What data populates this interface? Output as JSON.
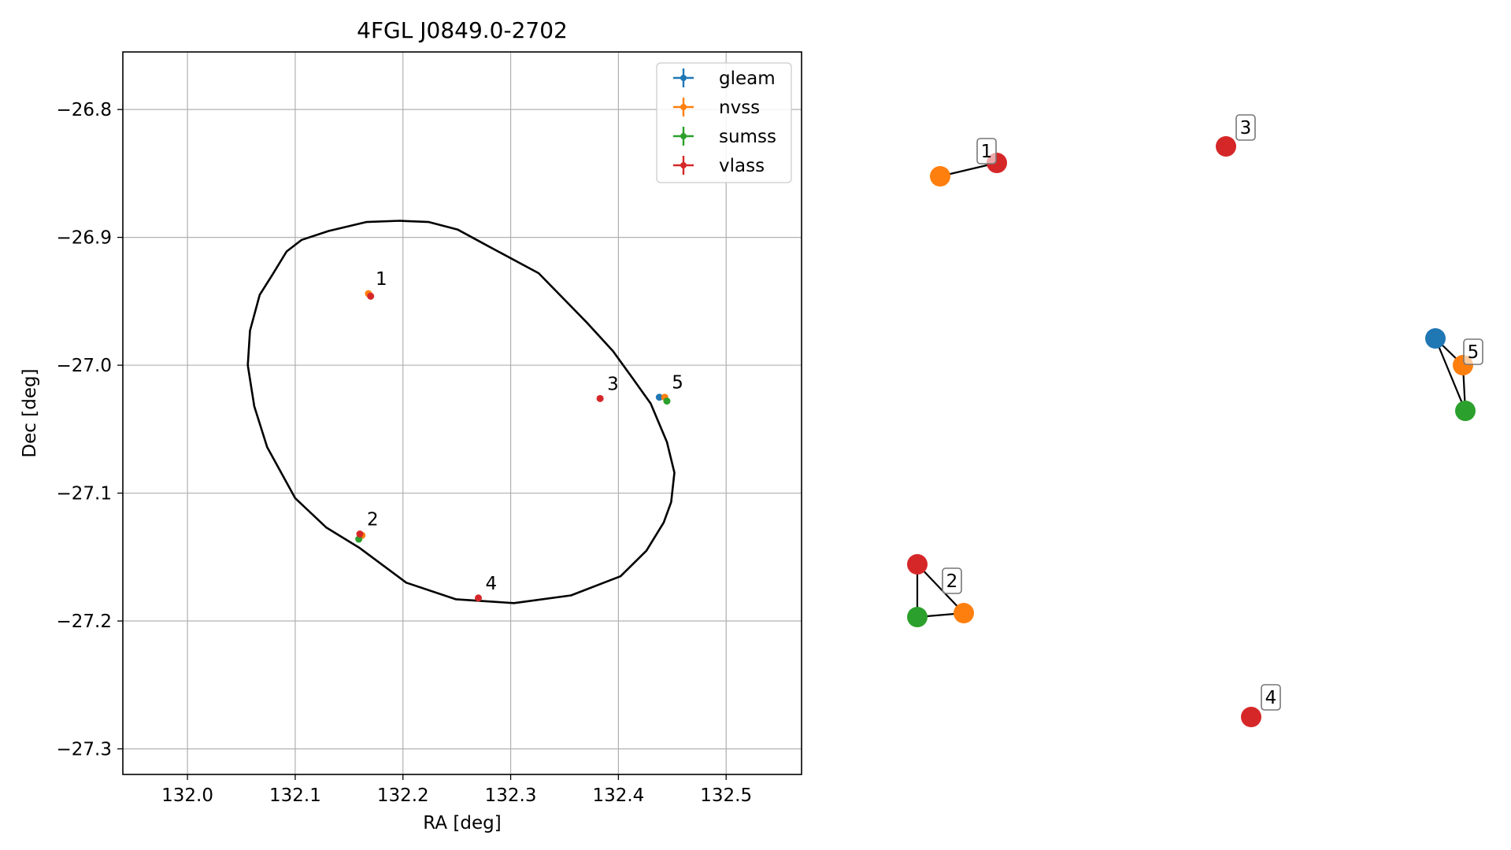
{
  "chart_data": [
    {
      "type": "scatter",
      "title": "4FGL J0849.0-2702",
      "xlabel": "RA [deg]",
      "ylabel": "Dec [deg]",
      "xlim": [
        131.94,
        132.57
      ],
      "ylim": [
        -27.32,
        -26.755
      ],
      "xticks": [
        132.0,
        132.1,
        132.2,
        132.3,
        132.4,
        132.5
      ],
      "xtick_labels": [
        "132.0",
        "132.1",
        "132.2",
        "132.3",
        "132.4",
        "132.5"
      ],
      "yticks": [
        -26.8,
        -26.9,
        -27.0,
        -27.1,
        -27.2,
        -27.3
      ],
      "ytick_labels": [
        "−26.8",
        "−26.9",
        "−27.0",
        "−27.1",
        "−27.2",
        "−27.3"
      ],
      "grid": true,
      "legend_position": "top-right",
      "series": [
        {
          "name": "gleam",
          "color": "#1f77b4",
          "points": [
            {
              "x": 132.438,
              "y": -27.025
            }
          ]
        },
        {
          "name": "nvss",
          "color": "#ff7f0e",
          "points": [
            {
              "x": 132.168,
              "y": -26.944
            },
            {
              "x": 132.162,
              "y": -27.133
            },
            {
              "x": 132.443,
              "y": -27.025
            }
          ]
        },
        {
          "name": "sumss",
          "color": "#2ca02c",
          "points": [
            {
              "x": 132.159,
              "y": -27.136
            },
            {
              "x": 132.445,
              "y": -27.028
            }
          ]
        },
        {
          "name": "vlass",
          "color": "#d62728",
          "points": [
            {
              "x": 132.17,
              "y": -26.946
            },
            {
              "x": 132.16,
              "y": -27.132
            },
            {
              "x": 132.383,
              "y": -27.026
            },
            {
              "x": 132.27,
              "y": -27.182
            }
          ]
        }
      ],
      "ellipse": {
        "center": [
          132.246,
          -27.036
        ],
        "points": [
          [
            132.197,
            -26.887
          ],
          [
            132.224,
            -26.888
          ],
          [
            132.251,
            -26.894
          ],
          [
            132.275,
            -26.905
          ],
          [
            132.326,
            -26.928
          ],
          [
            132.37,
            -26.966
          ],
          [
            132.395,
            -26.989
          ],
          [
            132.413,
            -27.01
          ],
          [
            132.43,
            -27.03
          ],
          [
            132.445,
            -27.06
          ],
          [
            132.452,
            -27.084
          ],
          [
            132.449,
            -27.107
          ],
          [
            132.442,
            -27.123
          ],
          [
            132.426,
            -27.145
          ],
          [
            132.402,
            -27.165
          ],
          [
            132.356,
            -27.18
          ],
          [
            132.303,
            -27.186
          ],
          [
            132.249,
            -27.183
          ],
          [
            132.203,
            -27.17
          ],
          [
            132.16,
            -27.143
          ],
          [
            132.129,
            -27.127
          ],
          [
            132.1,
            -27.104
          ],
          [
            132.074,
            -27.064
          ],
          [
            132.062,
            -27.032
          ],
          [
            132.056,
            -27.0
          ],
          [
            132.058,
            -26.973
          ],
          [
            132.067,
            -26.945
          ],
          [
            132.079,
            -26.929
          ],
          [
            132.092,
            -26.911
          ],
          [
            132.106,
            -26.902
          ],
          [
            132.131,
            -26.895
          ],
          [
            132.166,
            -26.888
          ]
        ]
      },
      "annotations": [
        {
          "text": "1",
          "x": 132.168,
          "y": -26.944
        },
        {
          "text": "2",
          "x": 132.16,
          "y": -27.132
        },
        {
          "text": "3",
          "x": 132.383,
          "y": -27.026
        },
        {
          "text": "4",
          "x": 132.27,
          "y": -27.182
        },
        {
          "text": "5",
          "x": 132.443,
          "y": -27.025
        }
      ]
    },
    {
      "type": "diagram",
      "groups": [
        {
          "label": "1",
          "nodes": [
            "nvss",
            "vlass"
          ],
          "edges": [
            [
              "nvss",
              "vlass"
            ]
          ]
        },
        {
          "label": "2",
          "nodes": [
            "vlass",
            "sumss",
            "nvss"
          ],
          "edges": [
            [
              "vlass",
              "sumss"
            ],
            [
              "sumss",
              "nvss"
            ],
            [
              "vlass",
              "nvss"
            ]
          ]
        },
        {
          "label": "3",
          "nodes": [
            "vlass"
          ],
          "edges": []
        },
        {
          "label": "4",
          "nodes": [
            "vlass"
          ],
          "edges": []
        },
        {
          "label": "5",
          "nodes": [
            "gleam",
            "nvss",
            "sumss"
          ],
          "edges": [
            [
              "gleam",
              "sumss"
            ],
            [
              "nvss",
              "sumss"
            ],
            [
              "gleam",
              "nvss"
            ]
          ]
        }
      ]
    }
  ]
}
